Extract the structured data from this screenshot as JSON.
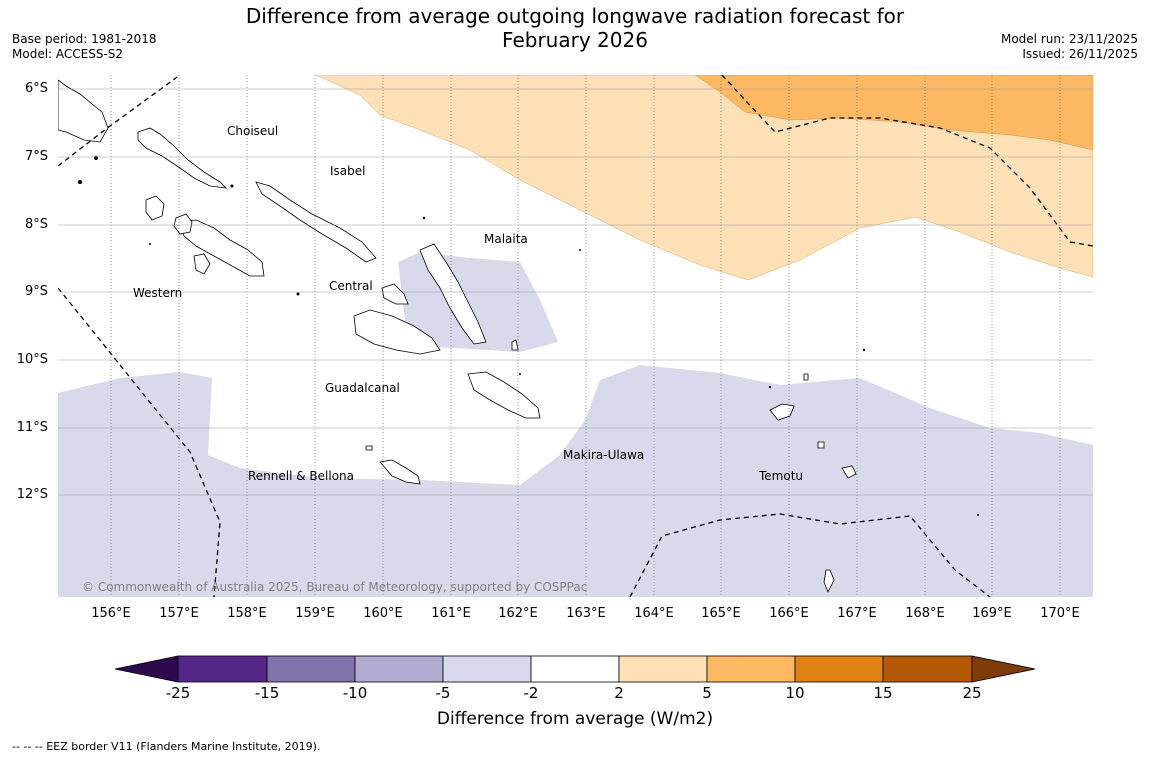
{
  "title_line1": "Difference from average outgoing longwave radiation forecast for",
  "title_line2": "February 2026",
  "meta_left": {
    "base_period": "Base period: 1981-2018",
    "model": "Model: ACCESS-S2"
  },
  "meta_right": {
    "model_run": "Model run: 23/11/2025",
    "issued": "Issued: 26/11/2025"
  },
  "copyright": "© Commonwealth of Australia 2025, Bureau of Meteorology, supported by COSPPac",
  "lon_ticks": [
    "156°E",
    "157°E",
    "158°E",
    "159°E",
    "160°E",
    "161°E",
    "162°E",
    "163°E",
    "164°E",
    "165°E",
    "166°E",
    "167°E",
    "168°E",
    "169°E",
    "170°E"
  ],
  "lat_ticks": [
    "6°S",
    "7°S",
    "8°S",
    "9°S",
    "10°S",
    "11°S",
    "12°S"
  ],
  "regions": {
    "choiseul": "Choiseul",
    "isabel": "Isabel",
    "malaita": "Malaita",
    "western": "Western",
    "central": "Central",
    "guadalcanal": "Guadalcanal",
    "makira": "Makira-Ulawa",
    "rennell": "Rennell & Bellona",
    "temotu": "Temotu"
  },
  "colorbar": {
    "ticks": [
      "-25",
      "-15",
      "-10",
      "-5",
      "-2",
      "2",
      "5",
      "10",
      "15",
      "25"
    ],
    "title": "Difference from average (W/m2)",
    "colors": {
      "below_min": "#2d0a4e",
      "c1": "#542788",
      "c2": "#8073ac",
      "c3": "#b2abd2",
      "c4": "#d8daeb",
      "c5": "#ffffff",
      "c6": "#fee0b6",
      "c7": "#fdb863",
      "c8": "#e08214",
      "c9": "#b35806",
      "above_max": "#7f3b08"
    }
  },
  "footnote": "--  --  -- EEZ border V11 (Flanders Marine Institute, 2019)."
}
